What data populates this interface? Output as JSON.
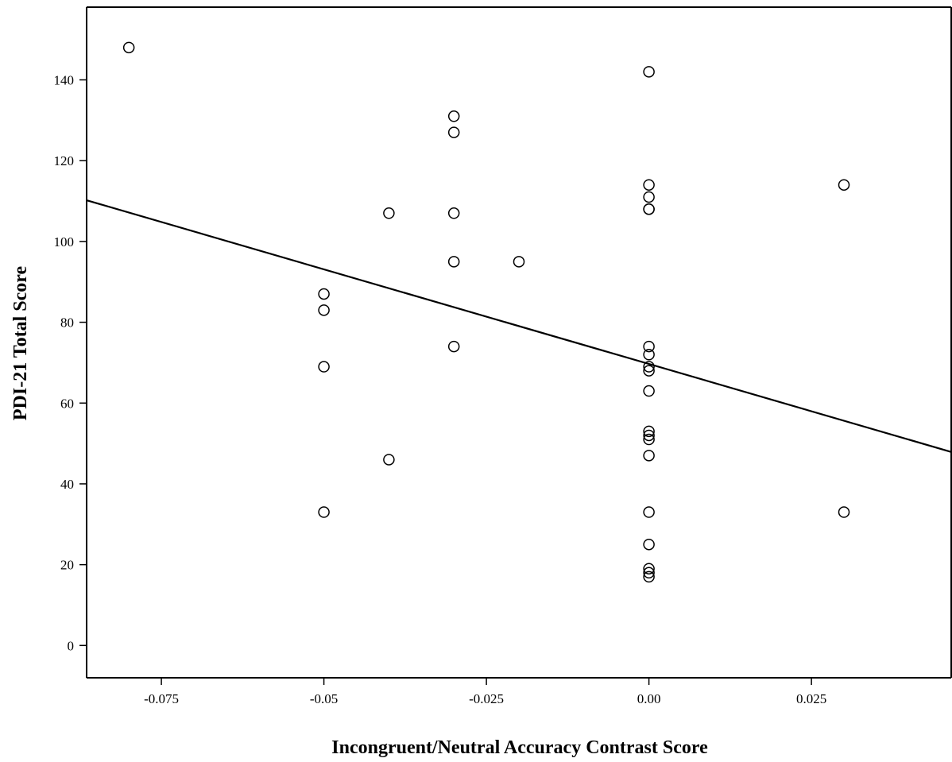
{
  "chart_data": {
    "type": "scatter",
    "title": "",
    "xlabel": "Incongruent/Neutral Accuracy Contrast Score",
    "ylabel": "PDI-21 Total Score",
    "xlim": [
      -0.0865,
      0.0465
    ],
    "ylim": [
      -8,
      158
    ],
    "grid": false,
    "legend": "none",
    "x_ticks": [
      {
        "value": -0.075,
        "label": "-0.075"
      },
      {
        "value": -0.05,
        "label": "-0.05"
      },
      {
        "value": -0.025,
        "label": "-0.025"
      },
      {
        "value": 0.0,
        "label": "0.00"
      },
      {
        "value": 0.025,
        "label": "0.025"
      }
    ],
    "y_ticks": [
      {
        "value": 0,
        "label": "0"
      },
      {
        "value": 20,
        "label": "20"
      },
      {
        "value": 40,
        "label": "40"
      },
      {
        "value": 60,
        "label": "60"
      },
      {
        "value": 80,
        "label": "80"
      },
      {
        "value": 100,
        "label": "100"
      },
      {
        "value": 120,
        "label": "120"
      },
      {
        "value": 140,
        "label": "140"
      }
    ],
    "points": [
      {
        "x": -0.08,
        "y": 148
      },
      {
        "x": -0.05,
        "y": 87
      },
      {
        "x": -0.05,
        "y": 83
      },
      {
        "x": -0.05,
        "y": 69
      },
      {
        "x": -0.05,
        "y": 33
      },
      {
        "x": -0.04,
        "y": 107
      },
      {
        "x": -0.04,
        "y": 46
      },
      {
        "x": -0.03,
        "y": 131
      },
      {
        "x": -0.03,
        "y": 127
      },
      {
        "x": -0.03,
        "y": 107
      },
      {
        "x": -0.03,
        "y": 95
      },
      {
        "x": -0.03,
        "y": 74
      },
      {
        "x": -0.02,
        "y": 95
      },
      {
        "x": 0.0,
        "y": 142
      },
      {
        "x": 0.0,
        "y": 114
      },
      {
        "x": 0.0,
        "y": 111
      },
      {
        "x": 0.0,
        "y": 108
      },
      {
        "x": 0.0,
        "y": 108
      },
      {
        "x": 0.0,
        "y": 74
      },
      {
        "x": 0.0,
        "y": 72
      },
      {
        "x": 0.0,
        "y": 69
      },
      {
        "x": 0.0,
        "y": 68
      },
      {
        "x": 0.0,
        "y": 63
      },
      {
        "x": 0.0,
        "y": 53
      },
      {
        "x": 0.0,
        "y": 52
      },
      {
        "x": 0.0,
        "y": 51
      },
      {
        "x": 0.0,
        "y": 47
      },
      {
        "x": 0.0,
        "y": 33
      },
      {
        "x": 0.0,
        "y": 25
      },
      {
        "x": 0.0,
        "y": 19
      },
      {
        "x": 0.0,
        "y": 18
      },
      {
        "x": 0.0,
        "y": 17
      },
      {
        "x": 0.03,
        "y": 114
      },
      {
        "x": 0.03,
        "y": 33
      }
    ],
    "fit_line": {
      "x": [
        -0.0865,
        0.0465
      ],
      "y": [
        110.2,
        47.9
      ]
    }
  }
}
